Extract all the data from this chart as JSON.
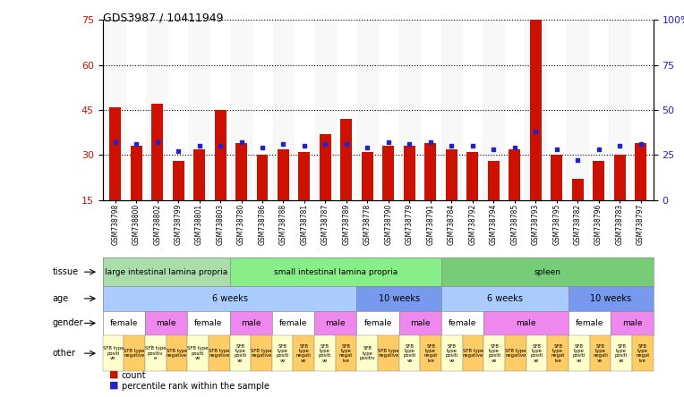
{
  "title": "GDS3987 / 10411949",
  "samples": [
    "GSM738798",
    "GSM738800",
    "GSM738802",
    "GSM738799",
    "GSM738801",
    "GSM738803",
    "GSM738780",
    "GSM738786",
    "GSM738788",
    "GSM738781",
    "GSM738787",
    "GSM738789",
    "GSM738778",
    "GSM738790",
    "GSM738779",
    "GSM738791",
    "GSM738784",
    "GSM738792",
    "GSM738794",
    "GSM738785",
    "GSM738793",
    "GSM738795",
    "GSM738782",
    "GSM738796",
    "GSM738783",
    "GSM738797"
  ],
  "counts": [
    46,
    33,
    47,
    28,
    32,
    45,
    34,
    30,
    32,
    31,
    37,
    42,
    31,
    33,
    33,
    34,
    32,
    31,
    28,
    32,
    75,
    30,
    22,
    28,
    30,
    34
  ],
  "percentiles": [
    32,
    31,
    32,
    27,
    30,
    30,
    32,
    29,
    31,
    30,
    31,
    31,
    29,
    32,
    31,
    32,
    30,
    30,
    28,
    29,
    38,
    28,
    22,
    28,
    30,
    31
  ],
  "ylim_left": [
    15,
    75
  ],
  "ylim_right": [
    0,
    100
  ],
  "yticks_left": [
    15,
    30,
    45,
    60,
    75
  ],
  "yticks_right": [
    0,
    25,
    50,
    75,
    100
  ],
  "bar_color": "#cc1100",
  "dot_color": "#2222cc",
  "tissue_groups": [
    {
      "label": "large intestinal lamina propria",
      "start": 0,
      "end": 5,
      "color": "#aaddaa"
    },
    {
      "label": "small intestinal lamina propria",
      "start": 6,
      "end": 15,
      "color": "#88ee88"
    },
    {
      "label": "spleen",
      "start": 16,
      "end": 25,
      "color": "#77cc77"
    }
  ],
  "age_groups": [
    {
      "label": "6 weeks",
      "start": 0,
      "end": 11,
      "color": "#aaccff"
    },
    {
      "label": "10 weeks",
      "start": 12,
      "end": 15,
      "color": "#7799ee"
    },
    {
      "label": "6 weeks",
      "start": 16,
      "end": 21,
      "color": "#aaccff"
    },
    {
      "label": "10 weeks",
      "start": 22,
      "end": 25,
      "color": "#7799ee"
    }
  ],
  "gender_groups": [
    {
      "label": "female",
      "start": 0,
      "end": 1,
      "color": "#ffffff"
    },
    {
      "label": "male",
      "start": 2,
      "end": 3,
      "color": "#ee88ee"
    },
    {
      "label": "female",
      "start": 4,
      "end": 5,
      "color": "#ffffff"
    },
    {
      "label": "male",
      "start": 6,
      "end": 7,
      "color": "#ee88ee"
    },
    {
      "label": "female",
      "start": 8,
      "end": 9,
      "color": "#ffffff"
    },
    {
      "label": "male",
      "start": 10,
      "end": 11,
      "color": "#ee88ee"
    },
    {
      "label": "female",
      "start": 12,
      "end": 13,
      "color": "#ffffff"
    },
    {
      "label": "male",
      "start": 14,
      "end": 15,
      "color": "#ee88ee"
    },
    {
      "label": "female",
      "start": 16,
      "end": 17,
      "color": "#ffffff"
    },
    {
      "label": "male",
      "start": 18,
      "end": 21,
      "color": "#ee88ee"
    },
    {
      "label": "female",
      "start": 22,
      "end": 23,
      "color": "#ffffff"
    },
    {
      "label": "male",
      "start": 24,
      "end": 25,
      "color": "#ee88ee"
    }
  ],
  "other_labels": [
    "SFB type\npositi\nve",
    "SFB type\nnegative",
    "SFB type\npositiv\ne",
    "SFB type\nnegative",
    "SFB type\npositi\nve",
    "SFB type\nnegative",
    "SFB\ntype\npositi\nve",
    "SFB type\nnegative",
    "SFB\ntype\npositi\nve",
    "SFB\ntype\nnegati\nve",
    "SFB\ntype\npositi\nve",
    "SFB\ntype\nnegat\nive",
    "SFB\ntype\npositiv",
    "SFB type\nnegative",
    "SFB\ntype\npositi\nve",
    "SFB\ntype\nnegat\nive",
    "SFB\ntype\npositi\nve",
    "SFB type\nnegative",
    "SFB\ntype\npositi\nve",
    "SFB type\nnegative",
    "SFB\ntype\npositi\nve",
    "SFB\ntype\nnegat\nive",
    "SFB\ntype\npositi\nve",
    "SFB\ntype\nnegati\nve",
    "SFB\ntype\npositi\nve",
    "SFB\ntype\nnegat\nive"
  ],
  "other_colors": [
    "#ffffcc",
    "#ffcc66",
    "#ffffcc",
    "#ffcc66",
    "#ffffcc",
    "#ffcc66",
    "#ffffcc",
    "#ffcc66",
    "#ffffcc",
    "#ffcc66",
    "#ffffcc",
    "#ffcc66",
    "#ffffcc",
    "#ffcc66",
    "#ffffcc",
    "#ffcc66",
    "#ffffcc",
    "#ffcc66",
    "#ffffcc",
    "#ffcc66",
    "#ffffcc",
    "#ffcc66",
    "#ffffcc",
    "#ffcc66",
    "#ffffcc",
    "#ffcc66"
  ],
  "fig_width": 7.64,
  "fig_height": 4.44,
  "dpi": 100
}
